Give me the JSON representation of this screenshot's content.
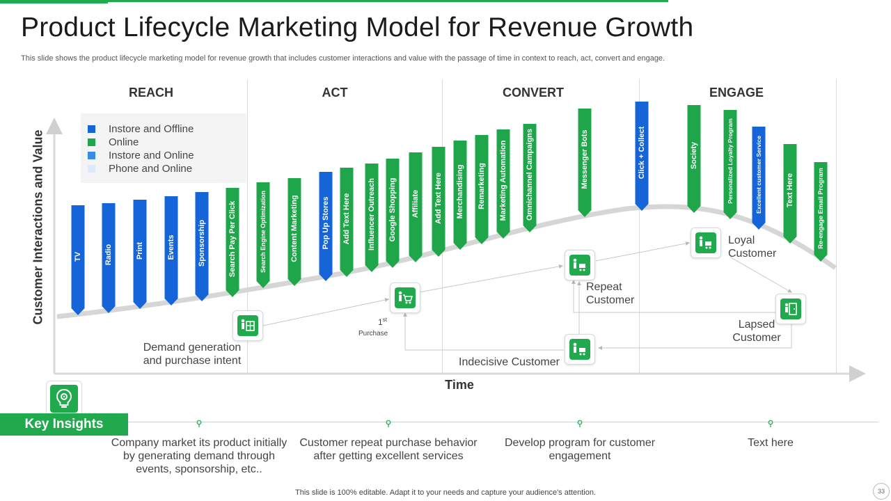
{
  "header": {
    "title": "Product Lifecycle Marketing Model for Revenue Growth",
    "subtitle": "This slide shows the product lifecycle marketing model for revenue growth that includes customer interactions and value with the passage of time in context to reach, act, convert and engage."
  },
  "phases": [
    "REACH",
    "ACT",
    "CONVERT",
    "ENGAGE"
  ],
  "legend": [
    {
      "label": "Instore and Offline",
      "color": "#1565d8"
    },
    {
      "label": "Online",
      "color": "#1fa64a"
    },
    {
      "label": "Instore and Online",
      "color": "#3a8be6"
    },
    {
      "label": "Phone and Online",
      "color": "#dce9fb"
    }
  ],
  "axes": {
    "y_label": "Customer Interactions and Value",
    "x_label": "Time"
  },
  "touchpoints": [
    {
      "label": "TV",
      "channel": "Instore and Offline"
    },
    {
      "label": "Radio",
      "channel": "Instore and Offline"
    },
    {
      "label": "Print",
      "channel": "Instore and Offline"
    },
    {
      "label": "Events",
      "channel": "Instore and Offline"
    },
    {
      "label": "Sponsorship",
      "channel": "Instore and Offline"
    },
    {
      "label": "Search Pay Per Click",
      "channel": "Online"
    },
    {
      "label": "Search Engine Optimization",
      "channel": "Online"
    },
    {
      "label": "Content Marketing",
      "channel": "Online"
    },
    {
      "label": "Pop Up Stores",
      "channel": "Instore and Offline"
    },
    {
      "label": "Add Text Here",
      "channel": "Online"
    },
    {
      "label": "Influencer Outreach",
      "channel": "Online"
    },
    {
      "label": "Google Shopping",
      "channel": "Online"
    },
    {
      "label": "Affiliate",
      "channel": "Online"
    },
    {
      "label": "Add Text Here",
      "channel": "Online"
    },
    {
      "label": "Merchandising",
      "channel": "Online"
    },
    {
      "label": "Remarketing",
      "channel": "Online"
    },
    {
      "label": "Marketing Automation",
      "channel": "Online"
    },
    {
      "label": "Omnichannel Campaigns",
      "channel": "Online"
    },
    {
      "label": "Messenger Bots",
      "channel": "Online"
    },
    {
      "label": "Click + Collect",
      "channel": "Instore and Offline"
    },
    {
      "label": "Society",
      "channel": "Online"
    },
    {
      "label": "Personalized Loyalty Program",
      "channel": "Online"
    },
    {
      "label": "Excellent customer Service",
      "channel": "Instore and Offline"
    },
    {
      "label": "Text Here",
      "channel": "Online"
    },
    {
      "label": "Re-engage Email Program",
      "channel": "Online"
    }
  ],
  "journey": {
    "demand": "Demand generation and purchase intent",
    "first_purchase_number": "1",
    "first_purchase_sup": "st",
    "first_purchase_word": "Purchase",
    "repeat": "Repeat Customer",
    "loyal": "Loyal Customer",
    "lapsed": "Lapsed Customer",
    "indecisive": "Indecisive Customer"
  },
  "insights": {
    "title": "Key Insights",
    "items": [
      "Company market its product initially by generating demand through events, sponsorship, etc..",
      "Customer repeat purchase behavior after getting excellent services",
      "Develop program for customer engagement",
      "Text here"
    ]
  },
  "footer": {
    "note": "This slide is 100% editable. Adapt it to your needs and capture your audience's attention.",
    "page": "33"
  }
}
